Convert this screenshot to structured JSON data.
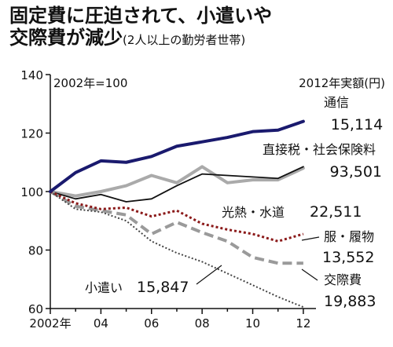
{
  "title_line1": "固定費に圧迫されて、小遣いや",
  "title_line2": "交際費が減少",
  "subtitle": "(2人以上の勤労者世帯)",
  "chart_data": {
    "type": "line",
    "base_note": "2002年=100",
    "amount_header": "2012年実額(円)",
    "x": [
      2002,
      2003,
      2004,
      2005,
      2006,
      2007,
      2008,
      2009,
      2010,
      2011,
      2012
    ],
    "xtick_labels": [
      "2002年",
      "04",
      "06",
      "08",
      "10",
      "12"
    ],
    "ytick_labels": [
      "60",
      "80",
      "100",
      "120",
      "140"
    ],
    "ylim": [
      60,
      140
    ],
    "xlim": [
      2002,
      2012.5
    ],
    "grid": false,
    "series": [
      {
        "name": "通信",
        "amount": "15,114",
        "color": "#1a1a6e",
        "style": "solid",
        "width": 4,
        "values": [
          100,
          106.5,
          110.5,
          110,
          112,
          115.5,
          117,
          118.5,
          120.5,
          121,
          124
        ]
      },
      {
        "name": "直接税・社会保険料",
        "amount": "93,501",
        "color": "#aaaaaa",
        "style": "solid",
        "width": 4,
        "values": [
          100,
          98.5,
          100,
          102,
          105.5,
          103,
          108.5,
          103,
          104,
          104,
          108
        ]
      },
      {
        "name": "光熱・水道",
        "amount": "22,511",
        "color": "#111111",
        "style": "solid",
        "width": 1.8,
        "values": [
          100,
          97.5,
          99,
          96.5,
          97.5,
          102,
          106,
          105.5,
          105,
          104.5,
          108.5
        ]
      },
      {
        "name": "服・履物",
        "amount": "13,552",
        "color": "#8b1a1a",
        "style": "dotted",
        "width": 3,
        "values": [
          100,
          96,
          94,
          94.5,
          91.5,
          93.5,
          89,
          87,
          85.5,
          83,
          85.5
        ]
      },
      {
        "name": "交際費",
        "amount": "19,883",
        "color": "#9a9a9a",
        "style": "dashed",
        "width": 4,
        "values": [
          100,
          95,
          93.5,
          92,
          85.5,
          89.5,
          86,
          83,
          77.5,
          75.5,
          75.5
        ]
      },
      {
        "name": "小遣い",
        "amount": "15,847",
        "color": "#444444",
        "style": "dotted",
        "width": 2,
        "values": [
          100,
          94,
          93,
          90,
          83,
          79,
          76,
          72,
          68,
          64,
          60.5
        ]
      }
    ]
  }
}
